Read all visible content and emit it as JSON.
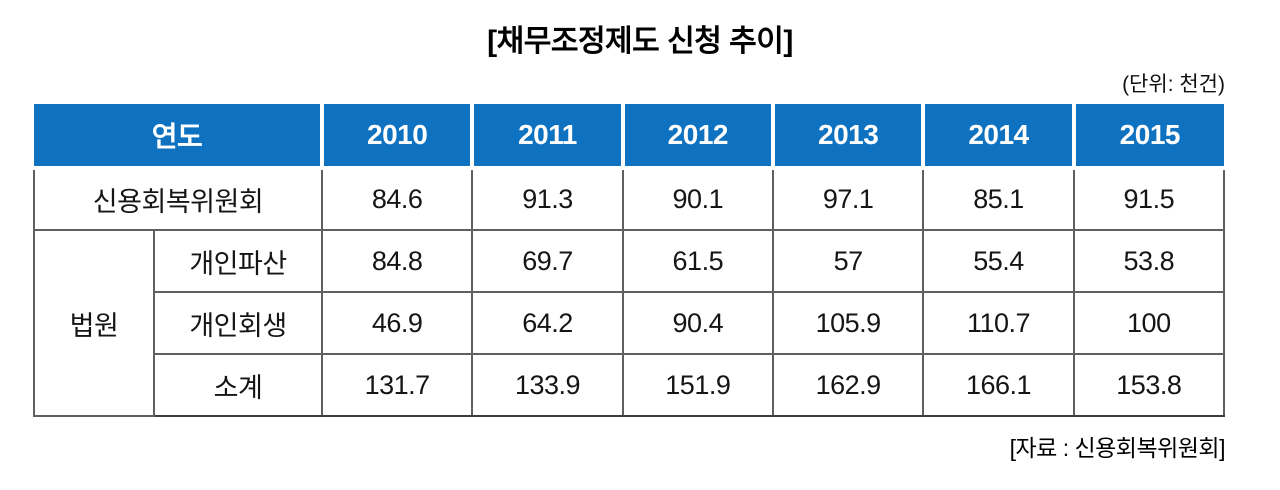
{
  "title": "[채무조정제도 신청 추이]",
  "unit_label": "(단위: 천건)",
  "source_label": "[자료 : 신용회복위원회]",
  "colors": {
    "header_bg": "#0e72c1",
    "header_text": "#ffffff",
    "border": "#5f6062",
    "body_text": "#151515"
  },
  "chart_data": {
    "type": "table",
    "title": "[채무조정제도 신청 추이]",
    "unit": "천건",
    "categories": [
      "2010",
      "2011",
      "2012",
      "2013",
      "2014",
      "2015"
    ],
    "series": [
      {
        "name": "신용회복위원회",
        "values": [
          84.6,
          91.3,
          90.1,
          97.1,
          85.1,
          91.5
        ]
      },
      {
        "name": "법원 개인파산",
        "values": [
          84.8,
          69.7,
          61.5,
          57,
          55.4,
          53.8
        ]
      },
      {
        "name": "법원 개인회생",
        "values": [
          46.9,
          64.2,
          90.4,
          105.9,
          110.7,
          100
        ]
      },
      {
        "name": "법원 소계",
        "values": [
          131.7,
          133.9,
          151.9,
          162.9,
          166.1,
          153.8
        ]
      }
    ]
  },
  "table": {
    "corner_header": "연도",
    "years": [
      "2010",
      "2011",
      "2012",
      "2013",
      "2014",
      "2015"
    ],
    "rows": [
      {
        "label": "신용회복위원회",
        "values": [
          "84.6",
          "91.3",
          "90.1",
          "97.1",
          "85.1",
          "91.5"
        ]
      },
      {
        "group": "법원",
        "label": "개인파산",
        "values": [
          "84.8",
          "69.7",
          "61.5",
          "57",
          "55.4",
          "53.8"
        ]
      },
      {
        "label": "개인회생",
        "values": [
          "46.9",
          "64.2",
          "90.4",
          "105.9",
          "110.7",
          "100"
        ]
      },
      {
        "label": "소계",
        "values": [
          "131.7",
          "133.9",
          "151.9",
          "162.9",
          "166.1",
          "153.8"
        ]
      }
    ]
  }
}
